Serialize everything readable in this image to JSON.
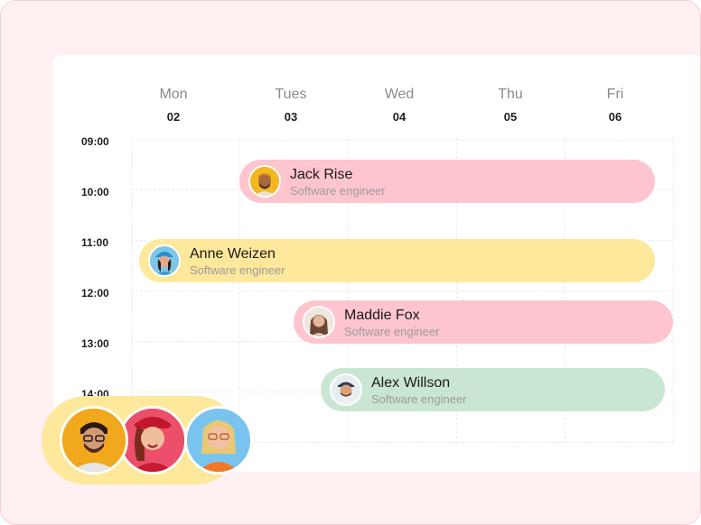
{
  "days": [
    {
      "name": "Mon",
      "date": "02"
    },
    {
      "name": "Tues",
      "date": "03"
    },
    {
      "name": "Wed",
      "date": "04"
    },
    {
      "name": "Thu",
      "date": "05"
    },
    {
      "name": "Fri",
      "date": "06"
    }
  ],
  "times": [
    "09:00",
    "10:00",
    "11:00",
    "12:00",
    "13:00",
    "14:00"
  ],
  "events": [
    {
      "name": "Jack Rise",
      "role": "Software engineer",
      "color": "#fec5cf",
      "avatar": "avatar-jack"
    },
    {
      "name": "Anne Weizen",
      "role": "Software engineer",
      "color": "#fde89b",
      "avatar": "avatar-anne"
    },
    {
      "name": "Maddie Fox",
      "role": "Software engineer",
      "color": "#fec5cf",
      "avatar": "avatar-maddie"
    },
    {
      "name": "Alex Willson",
      "role": "Software engineer",
      "color": "#c9e6d2",
      "avatar": "avatar-alex"
    }
  ],
  "colors": {
    "background": "#fff1f2",
    "pink": "#fec5cf",
    "yellow": "#fde89b",
    "green": "#c9e6d2"
  }
}
